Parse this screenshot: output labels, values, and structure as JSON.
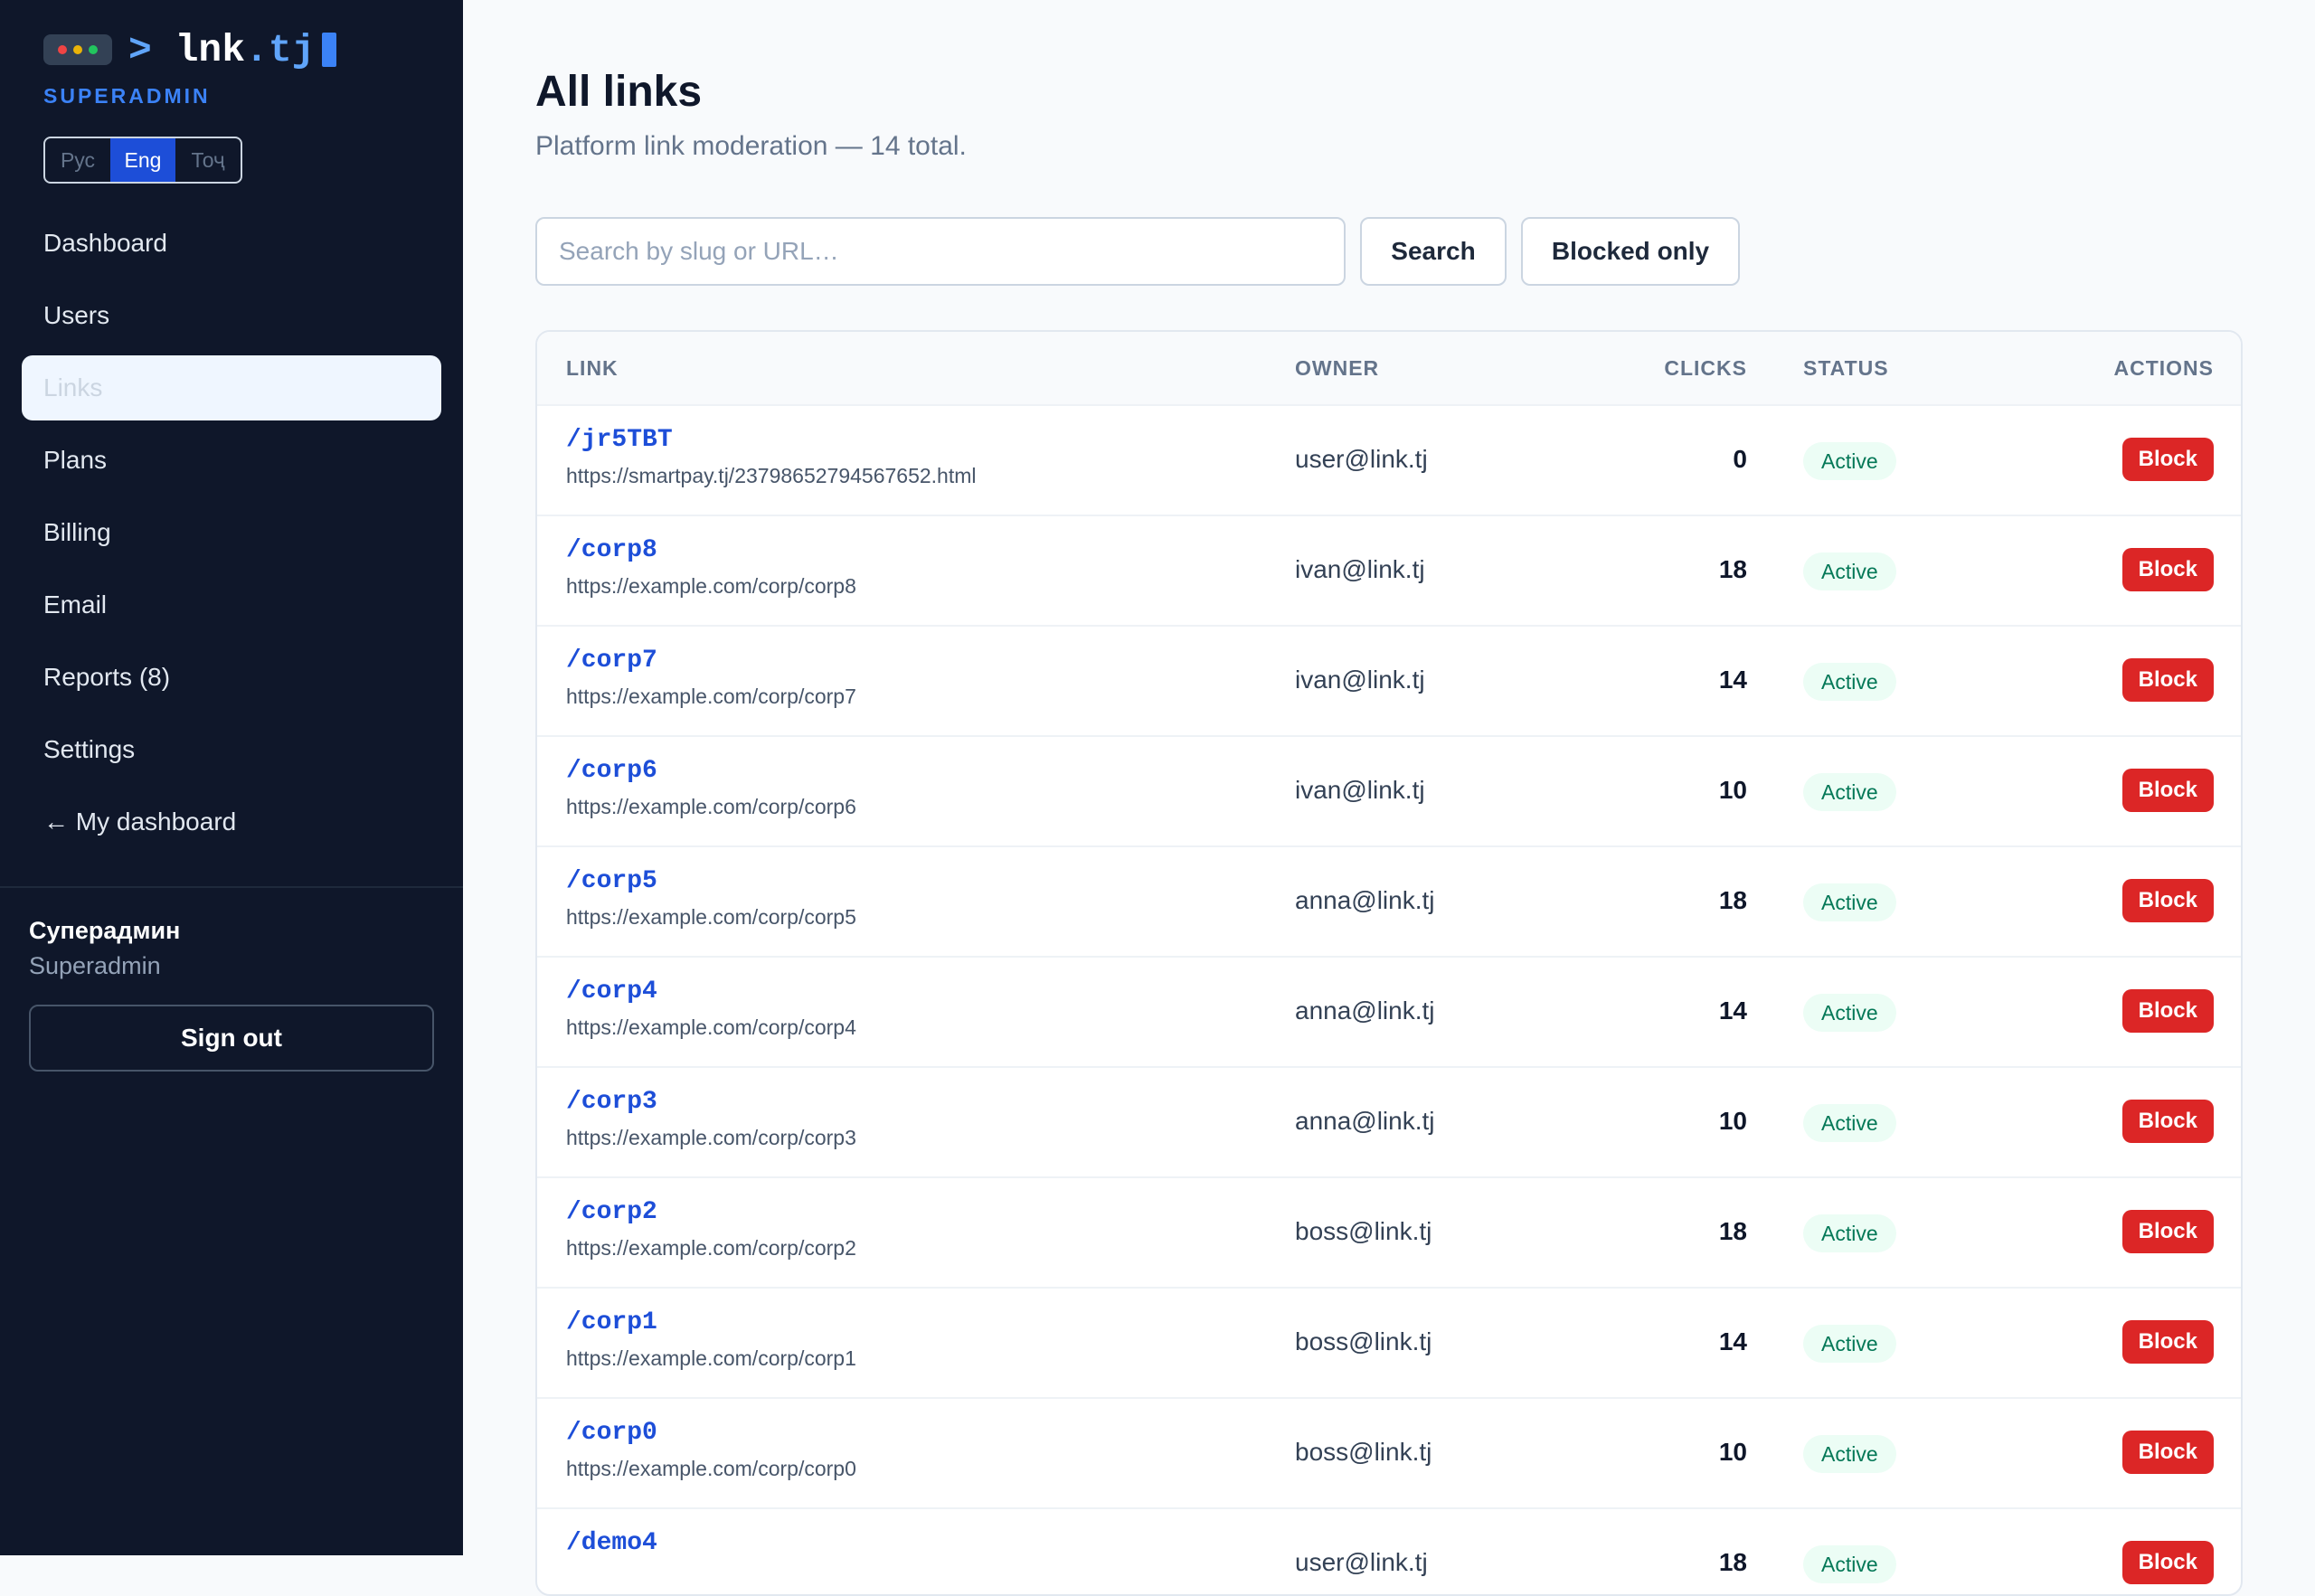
{
  "brand": {
    "logo_prompt": ">",
    "logo_name": "lnk",
    "logo_tld": ".tj",
    "role_label": "SUPERADMIN",
    "dot_colors": [
      "#ef4444",
      "#eab308",
      "#22c55e"
    ],
    "accent": "#1d4ed8",
    "sidebar_bg": "#0f172a"
  },
  "language_switcher": [
    {
      "label": "Рус",
      "active": false
    },
    {
      "label": "Eng",
      "active": true
    },
    {
      "label": "Тоҷ",
      "active": false
    }
  ],
  "nav": [
    {
      "label": "Dashboard",
      "active": false
    },
    {
      "label": "Users",
      "active": false
    },
    {
      "label": "Links",
      "active": true
    },
    {
      "label": "Plans",
      "active": false
    },
    {
      "label": "Billing",
      "active": false
    },
    {
      "label": "Email",
      "active": false
    },
    {
      "label": "Reports (8)",
      "active": false
    },
    {
      "label": "Settings",
      "active": false
    },
    {
      "label": "← My dashboard",
      "active": false
    }
  ],
  "user": {
    "name": "Суперадмин",
    "role": "Superadmin",
    "sign_out_label": "Sign out"
  },
  "page": {
    "title": "All links",
    "subtitle": "Platform link moderation — 14 total."
  },
  "search": {
    "placeholder": "Search by slug or URL…",
    "value": "",
    "search_button": "Search",
    "filter_button": "Blocked only"
  },
  "table": {
    "columns": [
      "LINK",
      "OWNER",
      "CLICKS",
      "STATUS",
      "ACTIONS"
    ],
    "rows": [
      {
        "slug": "/jr5TBT",
        "url": "https://smartpay.tj/23798652794567652.html",
        "owner": "user@link.tj",
        "clicks": "0",
        "status": "Active",
        "action": "Block"
      },
      {
        "slug": "/corp8",
        "url": "https://example.com/corp/corp8",
        "owner": "ivan@link.tj",
        "clicks": "18",
        "status": "Active",
        "action": "Block"
      },
      {
        "slug": "/corp7",
        "url": "https://example.com/corp/corp7",
        "owner": "ivan@link.tj",
        "clicks": "14",
        "status": "Active",
        "action": "Block"
      },
      {
        "slug": "/corp6",
        "url": "https://example.com/corp/corp6",
        "owner": "ivan@link.tj",
        "clicks": "10",
        "status": "Active",
        "action": "Block"
      },
      {
        "slug": "/corp5",
        "url": "https://example.com/corp/corp5",
        "owner": "anna@link.tj",
        "clicks": "18",
        "status": "Active",
        "action": "Block"
      },
      {
        "slug": "/corp4",
        "url": "https://example.com/corp/corp4",
        "owner": "anna@link.tj",
        "clicks": "14",
        "status": "Active",
        "action": "Block"
      },
      {
        "slug": "/corp3",
        "url": "https://example.com/corp/corp3",
        "owner": "anna@link.tj",
        "clicks": "10",
        "status": "Active",
        "action": "Block"
      },
      {
        "slug": "/corp2",
        "url": "https://example.com/corp/corp2",
        "owner": "boss@link.tj",
        "clicks": "18",
        "status": "Active",
        "action": "Block"
      },
      {
        "slug": "/corp1",
        "url": "https://example.com/corp/corp1",
        "owner": "boss@link.tj",
        "clicks": "14",
        "status": "Active",
        "action": "Block"
      },
      {
        "slug": "/corp0",
        "url": "https://example.com/corp/corp0",
        "owner": "boss@link.tj",
        "clicks": "10",
        "status": "Active",
        "action": "Block"
      },
      {
        "slug": "/demo4",
        "url": "",
        "owner": "user@link.tj",
        "clicks": "18",
        "status": "Active",
        "action": "Block"
      }
    ]
  }
}
